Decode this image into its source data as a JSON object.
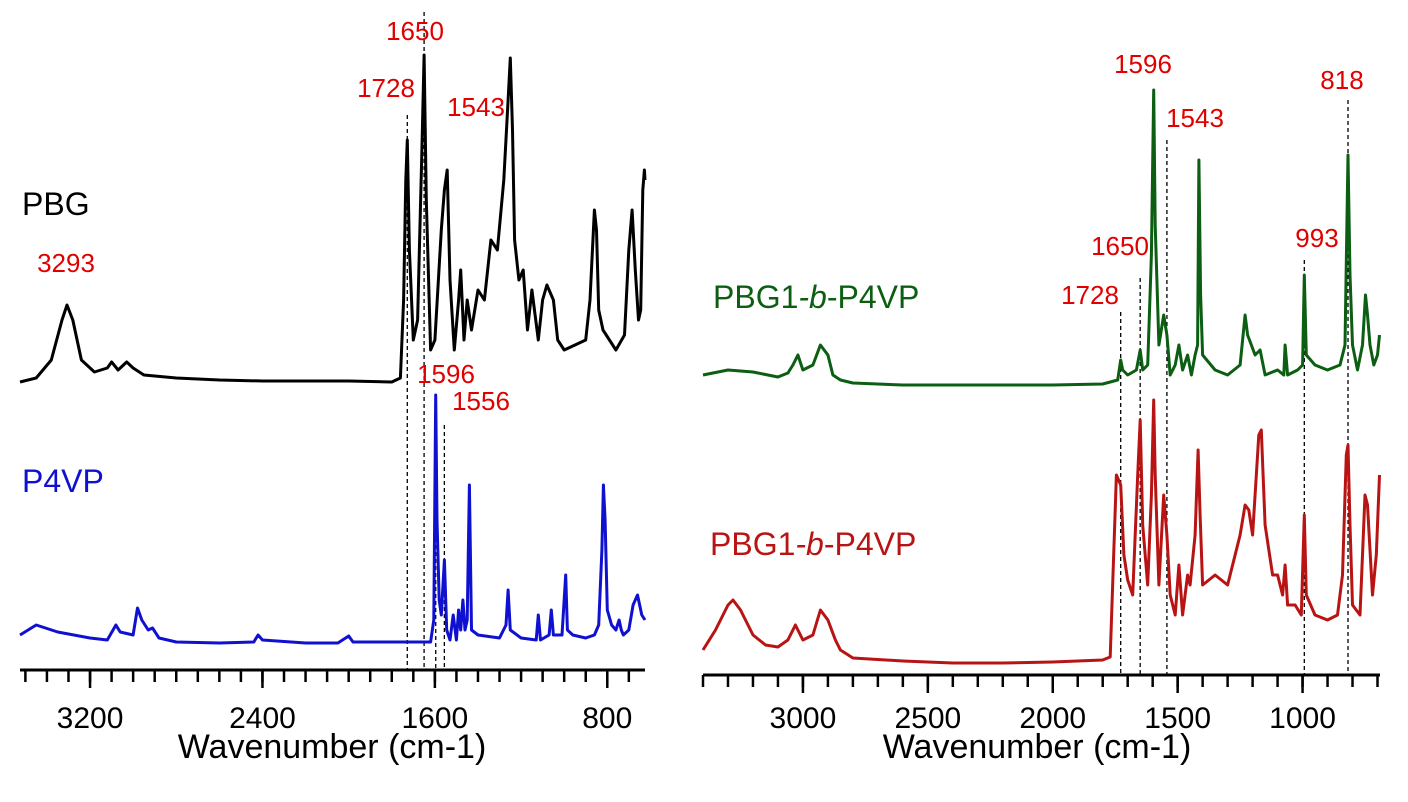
{
  "chart_data": [
    {
      "type": "line",
      "xlabel": "Wavenumber (cm-1)",
      "xlim": [
        3525,
        625
      ],
      "xticks": [
        3200,
        2400,
        1600,
        800
      ],
      "xminorticks": [
        3500,
        3400,
        3300,
        3200,
        3100,
        3000,
        2900,
        2800,
        2700,
        2600,
        2500,
        2400,
        2300,
        2200,
        2100,
        2000,
        1900,
        1800,
        1700,
        1600,
        1500,
        1400,
        1300,
        1200,
        1100,
        1000,
        900,
        800,
        700
      ],
      "ylim": [
        0,
        640
      ],
      "series": [
        {
          "name": "PBG",
          "color": "#000000",
          "x": [
            3525,
            3450,
            3380,
            3330,
            3307,
            3280,
            3240,
            3180,
            3120,
            3100,
            3070,
            3030,
            3000,
            2950,
            2800,
            2600,
            2400,
            2000,
            1800,
            1760,
            1745,
            1735,
            1728,
            1718,
            1700,
            1680,
            1660,
            1650,
            1640,
            1620,
            1600,
            1570,
            1556,
            1543,
            1530,
            1510,
            1490,
            1480,
            1465,
            1450,
            1430,
            1400,
            1370,
            1340,
            1310,
            1280,
            1260,
            1250,
            1240,
            1230,
            1210,
            1190,
            1170,
            1150,
            1120,
            1100,
            1080,
            1050,
            1030,
            1000,
            950,
            900,
            880,
            860,
            850,
            840,
            820,
            760,
            720,
            700,
            685,
            670,
            655,
            645,
            635,
            628,
            625
          ],
          "values": [
            288,
            292,
            310,
            350,
            365,
            350,
            310,
            298,
            302,
            308,
            300,
            308,
            302,
            295,
            292,
            290,
            289,
            289,
            288,
            292,
            370,
            490,
            530,
            420,
            330,
            350,
            520,
            615,
            470,
            320,
            330,
            440,
            480,
            500,
            390,
            320,
            370,
            400,
            330,
            370,
            340,
            380,
            370,
            430,
            420,
            490,
            570,
            612,
            540,
            430,
            390,
            400,
            340,
            380,
            330,
            370,
            385,
            370,
            330,
            320,
            325,
            330,
            370,
            460,
            440,
            360,
            340,
            320,
            335,
            420,
            460,
            400,
            350,
            360,
            480,
            500,
            490
          ]
        },
        {
          "name": "P4VP",
          "color": "#1010d0",
          "x": [
            3525,
            3450,
            3350,
            3200,
            3120,
            3080,
            3060,
            3000,
            2980,
            2960,
            2930,
            2910,
            2880,
            2800,
            2600,
            2440,
            2420,
            2400,
            2200,
            2050,
            2000,
            1980,
            1800,
            1620,
            1605,
            1596,
            1590,
            1580,
            1570,
            1556,
            1545,
            1530,
            1515,
            1500,
            1490,
            1480,
            1470,
            1460,
            1450,
            1440,
            1430,
            1400,
            1300,
            1270,
            1260,
            1250,
            1200,
            1130,
            1120,
            1110,
            1070,
            1060,
            1050,
            1010,
            993,
            985,
            960,
            900,
            860,
            840,
            825,
            818,
            810,
            800,
            780,
            760,
            745,
            735,
            725,
            700,
            680,
            660,
            640,
            625
          ],
          "values": [
            35,
            45,
            38,
            32,
            30,
            45,
            38,
            35,
            62,
            50,
            40,
            42,
            32,
            28,
            27,
            28,
            35,
            30,
            27,
            27,
            34,
            28,
            28,
            28,
            50,
            275,
            150,
            70,
            55,
            110,
            40,
            30,
            55,
            30,
            60,
            40,
            70,
            40,
            50,
            185,
            40,
            35,
            32,
            45,
            80,
            40,
            32,
            30,
            55,
            30,
            35,
            60,
            35,
            35,
            95,
            40,
            35,
            32,
            35,
            45,
            120,
            185,
            150,
            60,
            45,
            40,
            50,
            40,
            35,
            40,
            65,
            75,
            55,
            50
          ]
        }
      ],
      "peak_labels": [
        3293,
        1728,
        1650,
        1543,
        1596,
        1556
      ],
      "peak_lines": [
        1728,
        1650,
        1596,
        1556
      ]
    },
    {
      "type": "line",
      "xlabel": "Wavenumber (cm-1)",
      "xlim": [
        3400,
        690
      ],
      "xticks": [
        3000,
        2500,
        2000,
        1500,
        1000
      ],
      "xminorticks": [
        3400,
        3300,
        3200,
        3100,
        3000,
        2900,
        2800,
        2700,
        2600,
        2500,
        2400,
        2300,
        2200,
        2100,
        2000,
        1900,
        1800,
        1700,
        1600,
        1500,
        1400,
        1300,
        1200,
        1100,
        1000,
        900,
        800,
        700
      ],
      "ylim": [
        0,
        640
      ],
      "series": [
        {
          "name": "PBG1-b-P4VP",
          "color": "#0b5e12",
          "x": [
            3400,
            3300,
            3200,
            3100,
            3060,
            3040,
            3020,
            3000,
            2960,
            2930,
            2900,
            2880,
            2850,
            2800,
            2600,
            2400,
            2000,
            1800,
            1740,
            1728,
            1720,
            1700,
            1665,
            1650,
            1640,
            1620,
            1605,
            1596,
            1590,
            1575,
            1556,
            1543,
            1530,
            1510,
            1495,
            1480,
            1460,
            1445,
            1430,
            1420,
            1415,
            1408,
            1400,
            1350,
            1300,
            1250,
            1230,
            1220,
            1190,
            1170,
            1150,
            1100,
            1075,
            1070,
            1060,
            1020,
            1000,
            993,
            985,
            950,
            900,
            850,
            830,
            818,
            810,
            800,
            780,
            760,
            748,
            740,
            730,
            715,
            700,
            692
          ],
          "values": [
            300,
            305,
            303,
            298,
            302,
            310,
            320,
            305,
            310,
            330,
            320,
            300,
            295,
            292,
            290,
            290,
            290,
            291,
            295,
            315,
            305,
            300,
            305,
            325,
            305,
            310,
            420,
            585,
            450,
            330,
            360,
            340,
            300,
            310,
            330,
            305,
            320,
            300,
            320,
            330,
            515,
            380,
            320,
            305,
            300,
            310,
            360,
            340,
            320,
            325,
            300,
            305,
            300,
            330,
            300,
            305,
            310,
            400,
            320,
            310,
            305,
            310,
            330,
            520,
            400,
            330,
            305,
            330,
            380,
            360,
            330,
            310,
            320,
            340
          ]
        },
        {
          "name": "PBG1-b-P4VP",
          "color": "#b81414",
          "x": [
            3400,
            3350,
            3300,
            3280,
            3250,
            3200,
            3150,
            3100,
            3060,
            3030,
            3020,
            3000,
            2960,
            2930,
            2900,
            2870,
            2850,
            2800,
            2600,
            2400,
            2200,
            2000,
            1800,
            1770,
            1745,
            1728,
            1715,
            1700,
            1680,
            1660,
            1650,
            1640,
            1620,
            1605,
            1596,
            1590,
            1575,
            1556,
            1543,
            1530,
            1510,
            1495,
            1480,
            1460,
            1450,
            1430,
            1418,
            1410,
            1400,
            1350,
            1300,
            1250,
            1230,
            1215,
            1200,
            1175,
            1165,
            1150,
            1120,
            1100,
            1080,
            1070,
            1060,
            1030,
            1005,
            993,
            985,
            950,
            900,
            860,
            840,
            825,
            818,
            810,
            800,
            770,
            750,
            740,
            720,
            705,
            692
          ],
          "values": [
            25,
            45,
            70,
            75,
            65,
            40,
            30,
            28,
            35,
            50,
            45,
            35,
            40,
            65,
            55,
            35,
            25,
            17,
            14,
            12,
            12,
            13,
            15,
            18,
            200,
            190,
            120,
            95,
            80,
            200,
            255,
            150,
            90,
            180,
            275,
            200,
            90,
            180,
            140,
            80,
            60,
            110,
            60,
            100,
            90,
            140,
            225,
            160,
            90,
            100,
            90,
            140,
            170,
            165,
            140,
            240,
            245,
            150,
            100,
            100,
            80,
            110,
            70,
            70,
            60,
            160,
            80,
            60,
            55,
            60,
            100,
            220,
            230,
            150,
            70,
            60,
            180,
            170,
            80,
            120,
            200
          ]
        }
      ],
      "peak_labels": [
        1728,
        1650,
        1596,
        1543,
        993,
        818
      ],
      "peak_lines": [
        1728,
        1650,
        1543,
        993,
        818
      ]
    }
  ]
}
